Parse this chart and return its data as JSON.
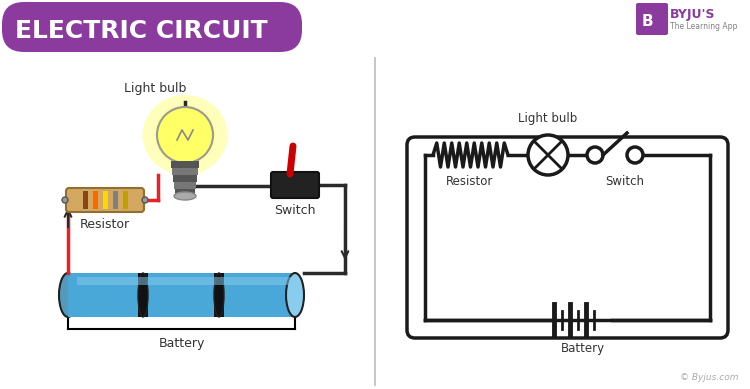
{
  "title": "ELECTRIC CIRCUIT",
  "title_bg_color": "#8B3A9E",
  "title_text_color": "#FFFFFF",
  "bg_color": "#FFFFFF",
  "divider_color": "#BBBBBB",
  "circuit_color": "#1A1A1A",
  "wire_red": "#E8212A",
  "wire_dark": "#2A2A2A",
  "battery_blue": "#4AA8D8",
  "battery_dark": "#222222",
  "resistor_body": "#D4A860",
  "resistor_bands": [
    "#8B4513",
    "#FF6600",
    "#FFD700",
    "#C0C0C0",
    "#C0A000"
  ],
  "bulb_yellow": "#FFFF66",
  "bulb_glow": "#FFFFCC",
  "switch_red": "#CC0000",
  "label_color": "#333333",
  "copyright_color": "#AAAAAA",
  "byjus_purple": "#8B3A9E",
  "schematic_lw": 2.5,
  "labels": {
    "light_bulb_real": "Light bulb",
    "resistor_real": "Resistor",
    "switch_real": "Switch",
    "battery_real": "Battery",
    "light_bulb_schematic": "Light bulb",
    "resistor_schematic": "Resistor",
    "switch_schematic": "Switch",
    "battery_schematic": "Battery",
    "copyright": "© Byjus.com"
  }
}
